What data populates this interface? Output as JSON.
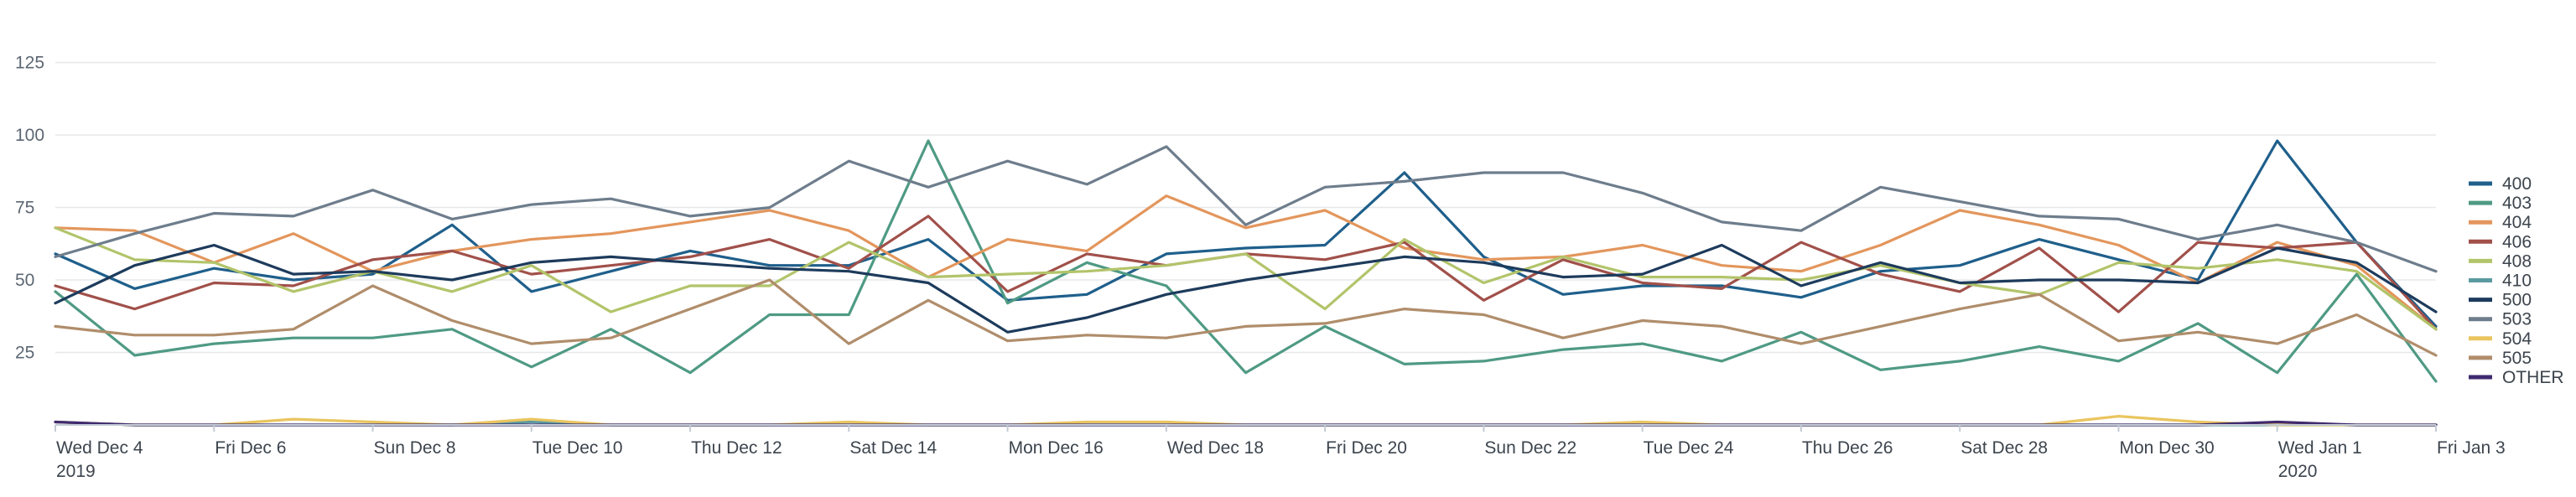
{
  "chart_data": {
    "type": "line",
    "title": "",
    "xlabel": "",
    "ylabel": "",
    "ylim": [
      0,
      135
    ],
    "yticks": [
      25,
      50,
      75,
      100,
      125
    ],
    "grid": true,
    "legend_position": "right",
    "x": [
      "2019-12-04",
      "2019-12-05",
      "2019-12-06",
      "2019-12-07",
      "2019-12-08",
      "2019-12-09",
      "2019-12-10",
      "2019-12-11",
      "2019-12-12",
      "2019-12-13",
      "2019-12-14",
      "2019-12-15",
      "2019-12-16",
      "2019-12-17",
      "2019-12-18",
      "2019-12-19",
      "2019-12-20",
      "2019-12-21",
      "2019-12-22",
      "2019-12-23",
      "2019-12-24",
      "2019-12-25",
      "2019-12-26",
      "2019-12-27",
      "2019-12-28",
      "2019-12-29",
      "2019-12-30",
      "2019-12-31",
      "2020-01-01",
      "2020-01-02",
      "2020-01-03"
    ],
    "x_ticks": [
      {
        "label": "Wed Dec 4",
        "sublabel": "2019",
        "index": 0
      },
      {
        "label": "Fri Dec 6",
        "sublabel": "",
        "index": 2
      },
      {
        "label": "Sun Dec 8",
        "sublabel": "",
        "index": 4
      },
      {
        "label": "Tue Dec 10",
        "sublabel": "",
        "index": 6
      },
      {
        "label": "Thu Dec 12",
        "sublabel": "",
        "index": 8
      },
      {
        "label": "Sat Dec 14",
        "sublabel": "",
        "index": 10
      },
      {
        "label": "Mon Dec 16",
        "sublabel": "",
        "index": 12
      },
      {
        "label": "Wed Dec 18",
        "sublabel": "",
        "index": 14
      },
      {
        "label": "Fri Dec 20",
        "sublabel": "",
        "index": 16
      },
      {
        "label": "Sun Dec 22",
        "sublabel": "",
        "index": 18
      },
      {
        "label": "Tue Dec 24",
        "sublabel": "",
        "index": 20
      },
      {
        "label": "Thu Dec 26",
        "sublabel": "",
        "index": 22
      },
      {
        "label": "Sat Dec 28",
        "sublabel": "",
        "index": 24
      },
      {
        "label": "Mon Dec 30",
        "sublabel": "",
        "index": 26
      },
      {
        "label": "Wed Jan 1",
        "sublabel": "2020",
        "index": 28
      },
      {
        "label": "Fri Jan 3",
        "sublabel": "",
        "index": 30
      }
    ],
    "series": [
      {
        "name": "400",
        "color": "#1f5f8b",
        "values": [
          59,
          47,
          54,
          50,
          52,
          69,
          46,
          53,
          60,
          55,
          55,
          64,
          43,
          45,
          59,
          61,
          62,
          87,
          58,
          45,
          48,
          48,
          44,
          53,
          55,
          64,
          57,
          50,
          98,
          63,
          34
        ]
      },
      {
        "name": "403",
        "color": "#4f9a84",
        "values": [
          46,
          24,
          28,
          30,
          30,
          33,
          20,
          33,
          18,
          38,
          38,
          98,
          42,
          56,
          48,
          18,
          34,
          21,
          22,
          26,
          28,
          22,
          32,
          19,
          22,
          27,
          22,
          35,
          18,
          52,
          15
        ]
      },
      {
        "name": "404",
        "color": "#e3965c",
        "values": [
          68,
          67,
          56,
          66,
          53,
          60,
          64,
          66,
          70,
          74,
          67,
          51,
          64,
          60,
          79,
          68,
          74,
          61,
          57,
          58,
          62,
          55,
          53,
          62,
          74,
          69,
          62,
          49,
          63,
          55,
          33
        ]
      },
      {
        "name": "406",
        "color": "#a1504a",
        "values": [
          48,
          40,
          49,
          48,
          57,
          60,
          52,
          55,
          58,
          64,
          54,
          72,
          46,
          59,
          55,
          59,
          57,
          63,
          43,
          57,
          49,
          47,
          63,
          52,
          46,
          61,
          39,
          63,
          61,
          63,
          33
        ]
      },
      {
        "name": "408",
        "color": "#b2c46a",
        "values": [
          68,
          57,
          56,
          46,
          53,
          46,
          55,
          39,
          48,
          48,
          63,
          51,
          52,
          53,
          55,
          59,
          40,
          64,
          49,
          58,
          51,
          51,
          50,
          55,
          49,
          45,
          56,
          54,
          57,
          53,
          33
        ]
      },
      {
        "name": "410",
        "color": "#5b9aa0",
        "values": [
          1,
          0,
          0,
          0,
          0,
          0,
          1,
          0,
          0,
          0,
          0,
          0,
          0,
          0,
          0,
          0,
          0,
          0,
          0,
          0,
          0,
          0,
          0,
          0,
          0,
          0,
          0,
          0,
          0,
          0,
          0
        ]
      },
      {
        "name": "500",
        "color": "#1d3b5c",
        "values": [
          42,
          55,
          62,
          52,
          53,
          50,
          56,
          58,
          56,
          54,
          53,
          49,
          32,
          37,
          45,
          50,
          54,
          58,
          56,
          51,
          52,
          62,
          48,
          56,
          49,
          50,
          50,
          49,
          61,
          56,
          39
        ]
      },
      {
        "name": "503",
        "color": "#6e7d8c",
        "values": [
          58,
          66,
          73,
          72,
          81,
          71,
          76,
          78,
          72,
          75,
          91,
          82,
          91,
          83,
          96,
          69,
          82,
          84,
          87,
          87,
          80,
          70,
          67,
          82,
          77,
          72,
          71,
          64,
          69,
          63,
          53
        ]
      },
      {
        "name": "504",
        "color": "#eac55f",
        "values": [
          1,
          0,
          0,
          2,
          1,
          0,
          2,
          0,
          0,
          0,
          1,
          0,
          0,
          1,
          1,
          0,
          0,
          0,
          0,
          0,
          1,
          0,
          0,
          0,
          0,
          0,
          3,
          1,
          0,
          0,
          0
        ]
      },
      {
        "name": "505",
        "color": "#b08d6b",
        "values": [
          34,
          31,
          31,
          33,
          48,
          36,
          28,
          30,
          40,
          50,
          28,
          43,
          29,
          31,
          30,
          34,
          35,
          40,
          38,
          30,
          36,
          34,
          28,
          34,
          40,
          45,
          29,
          32,
          28,
          38,
          24
        ]
      },
      {
        "name": "OTHER",
        "color": "#3f2a6e",
        "values": [
          1,
          0,
          0,
          0,
          0,
          0,
          0,
          0,
          0,
          0,
          0,
          0,
          0,
          0,
          0,
          0,
          0,
          0,
          0,
          0,
          0,
          0,
          0,
          0,
          0,
          0,
          0,
          0,
          1,
          0,
          0
        ]
      }
    ]
  }
}
